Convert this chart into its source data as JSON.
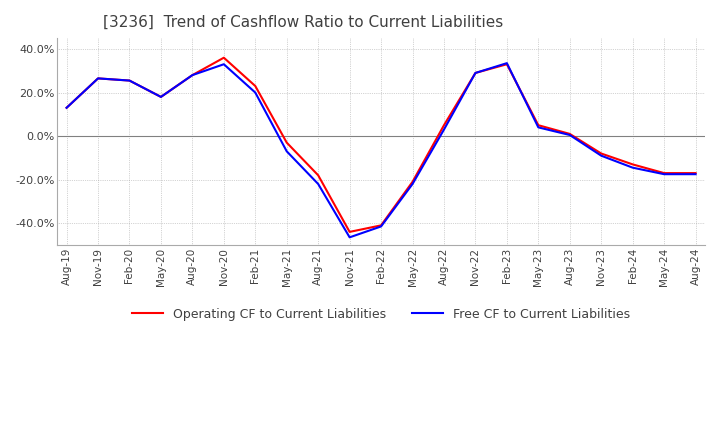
{
  "title": "[3236]  Trend of Cashflow Ratio to Current Liabilities",
  "x_labels": [
    "Aug-19",
    "Nov-19",
    "Feb-20",
    "May-20",
    "Aug-20",
    "Nov-20",
    "Feb-21",
    "May-21",
    "Aug-21",
    "Nov-21",
    "Feb-22",
    "May-22",
    "Aug-22",
    "Nov-22",
    "Feb-23",
    "May-23",
    "Aug-23",
    "Nov-23",
    "Feb-24",
    "May-24",
    "Aug-24"
  ],
  "operating_cf": [
    13.0,
    26.5,
    25.5,
    18.0,
    28.0,
    36.0,
    23.0,
    -3.0,
    -18.0,
    -44.0,
    -41.0,
    -21.0,
    5.0,
    29.0,
    33.0,
    5.0,
    1.0,
    -8.0,
    -13.0,
    -17.0,
    -17.0
  ],
  "free_cf": [
    13.0,
    26.5,
    25.5,
    18.0,
    28.0,
    33.0,
    20.0,
    -7.0,
    -22.0,
    -46.5,
    -41.5,
    -22.0,
    3.0,
    29.0,
    33.5,
    4.0,
    0.5,
    -9.0,
    -14.5,
    -17.5,
    -17.5
  ],
  "operating_color": "#ff0000",
  "free_color": "#0000ff",
  "ylim": [
    -50,
    45
  ],
  "yticks": [
    -40.0,
    -20.0,
    0.0,
    20.0,
    40.0
  ],
  "background_color": "#ffffff",
  "plot_bg_color": "#ffffff",
  "grid_color": "#aaaaaa",
  "title_fontsize": 11,
  "title_color": "#404040",
  "legend_operating": "Operating CF to Current Liabilities",
  "legend_free": "Free CF to Current Liabilities"
}
